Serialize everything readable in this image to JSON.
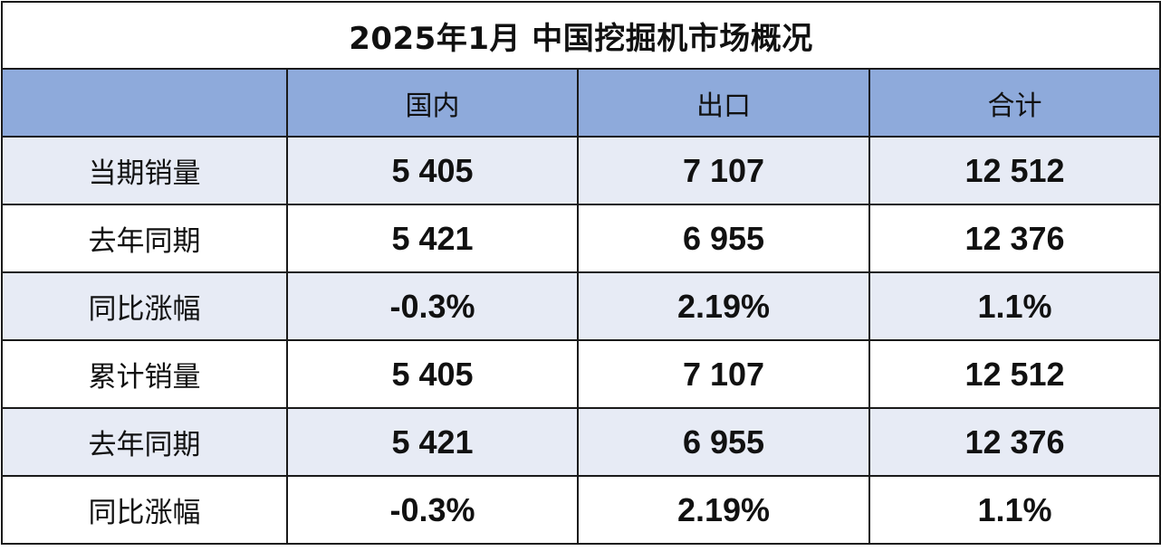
{
  "title": "2025年1月 中国挖掘机市场概况",
  "columns": [
    "",
    "国内",
    "出口",
    "合计"
  ],
  "rows": [
    {
      "label": "当期销量",
      "values": [
        "5 405",
        "7 107",
        "12 512"
      ],
      "shade": true
    },
    {
      "label": "去年同期",
      "values": [
        "5 421",
        "6 955",
        "12 376"
      ],
      "shade": false
    },
    {
      "label": "同比涨幅",
      "values": [
        "-0.3%",
        "2.19%",
        "1.1%"
      ],
      "shade": true
    },
    {
      "label": "累计销量",
      "values": [
        "5 405",
        "7 107",
        "12 512"
      ],
      "shade": false
    },
    {
      "label": "去年同期",
      "values": [
        "5 421",
        "6 955",
        "12 376"
      ],
      "shade": true
    },
    {
      "label": "同比涨幅",
      "values": [
        "-0.3%",
        "2.19%",
        "1.1%"
      ],
      "shade": false
    }
  ],
  "colors": {
    "header_bg": "#8eaadb",
    "shaded_row_bg": "#e7ebf5",
    "plain_row_bg": "#ffffff",
    "border": "#1a1a1a"
  }
}
